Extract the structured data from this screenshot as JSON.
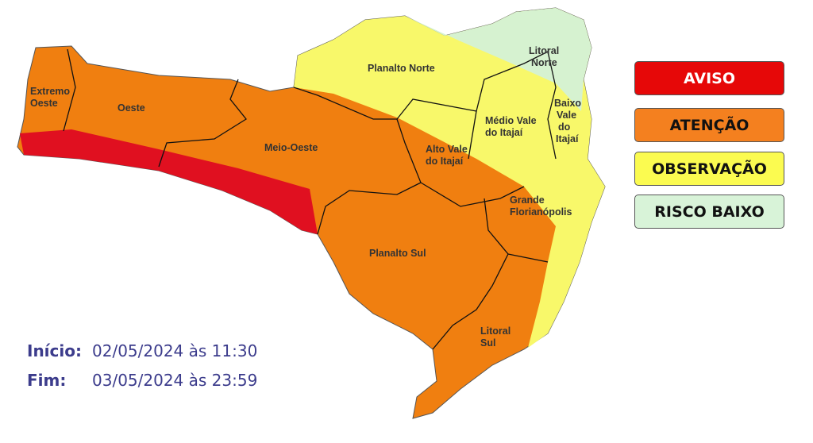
{
  "legend": [
    {
      "label": "AVISO",
      "color": "#e30a0a",
      "text_color": "#ffffff"
    },
    {
      "label": "ATENÇÃO",
      "color": "#f4801f",
      "text_color": "#111111"
    },
    {
      "label": "OBSERVAÇÃO",
      "color": "#fbfb50",
      "text_color": "#111111"
    },
    {
      "label": "RISCO BAIXO",
      "color": "#d8f3d8",
      "text_color": "#111111"
    }
  ],
  "regions": [
    {
      "name": [
        "Extremo",
        "Oeste"
      ],
      "level": "ATENÇÃO"
    },
    {
      "name": [
        "Oeste"
      ],
      "level": "ATENÇÃO"
    },
    {
      "name": [
        "Meio-Oeste"
      ],
      "level": "ATENÇÃO"
    },
    {
      "name": [
        "Planalto Norte"
      ],
      "level": "OBSERVAÇÃO"
    },
    {
      "name": [
        "Litoral",
        "Norte"
      ],
      "level": "RISCO BAIXO"
    },
    {
      "name": [
        "Baixo",
        "Vale",
        "do",
        "Itajaí"
      ],
      "level": "OBSERVAÇÃO"
    },
    {
      "name": [
        "Médio Vale",
        "do Itajaí"
      ],
      "level": "OBSERVAÇÃO"
    },
    {
      "name": [
        "Alto Vale",
        "do Itajaí"
      ],
      "level": "ATENÇÃO"
    },
    {
      "name": [
        "Grande",
        "Florianópolis"
      ],
      "level": "ATENÇÃO"
    },
    {
      "name": [
        "Planalto Sul"
      ],
      "level": "ATENÇÃO"
    },
    {
      "name": [
        "Litoral",
        "Sul"
      ],
      "level": "ATENÇÃO"
    }
  ],
  "validity": {
    "start_label": "Início:",
    "start_value": "02/05/2024 às 11:30",
    "end_label": "Fim:",
    "end_value": "03/05/2024 às 23:59"
  }
}
